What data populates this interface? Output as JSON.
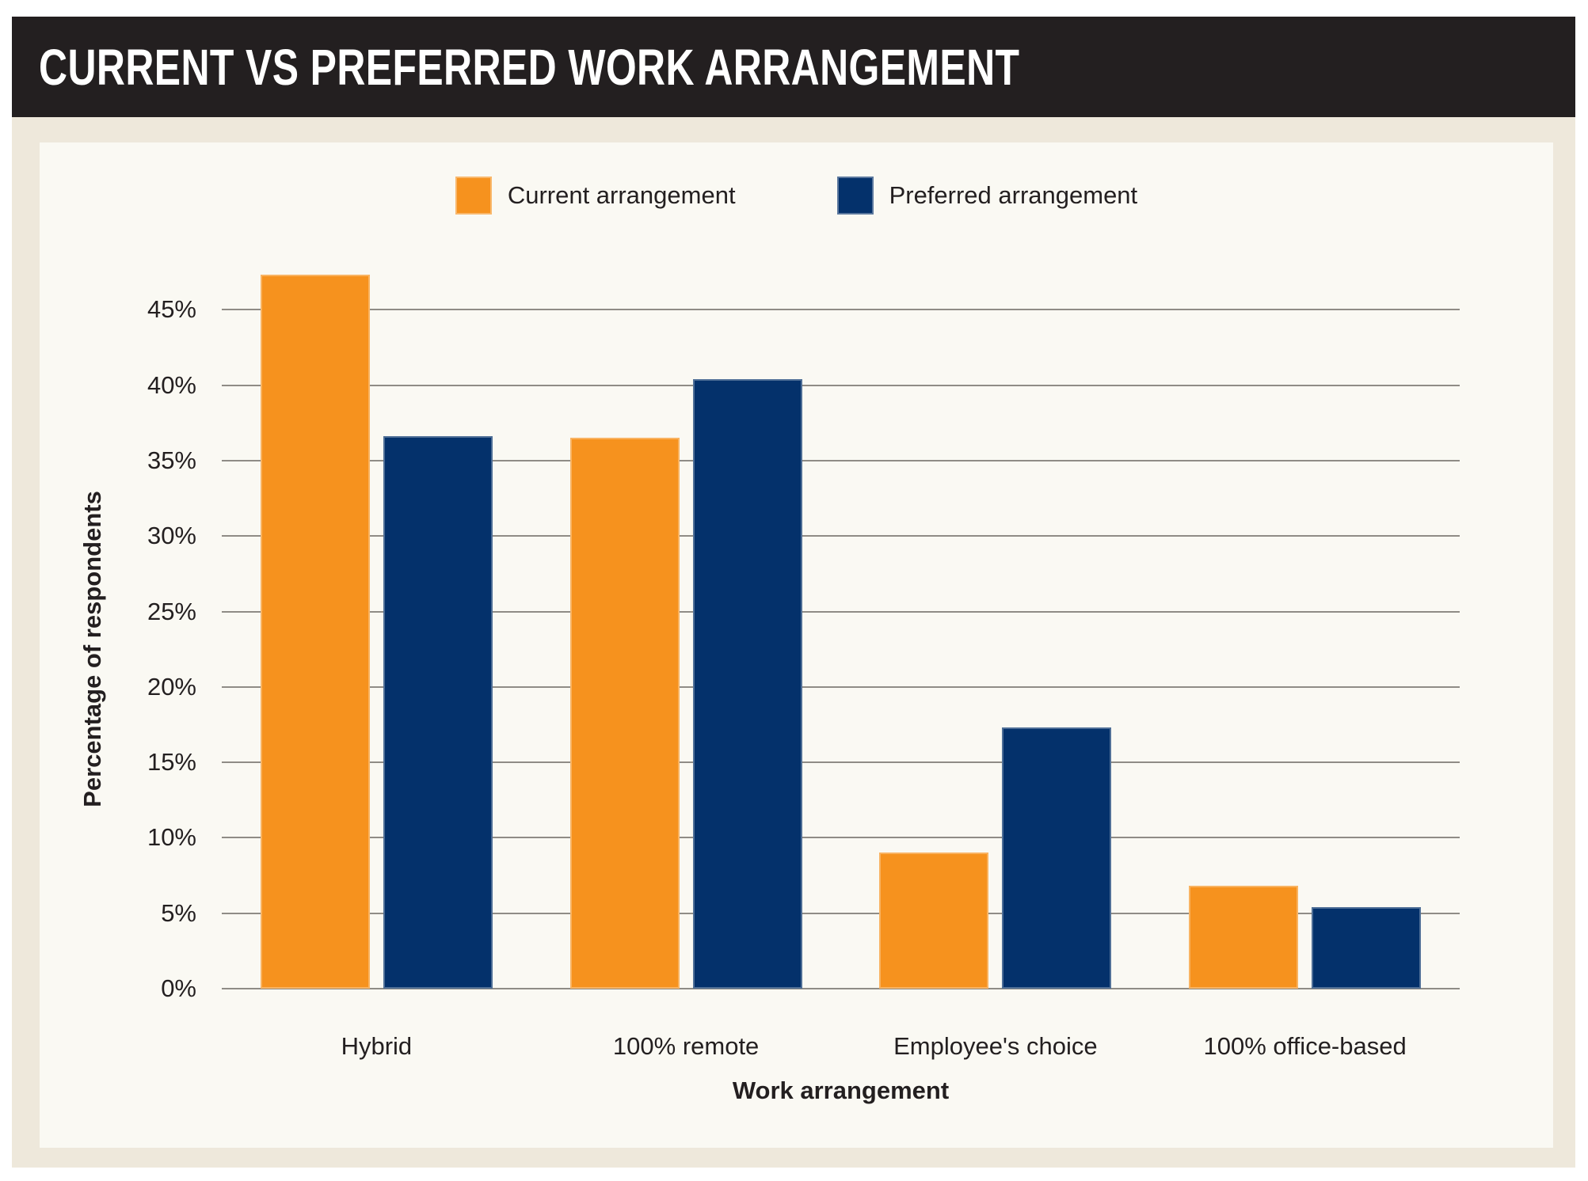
{
  "header": {
    "title": "CURRENT VS PREFERRED WORK ARRANGEMENT"
  },
  "colors": {
    "banner_background": "#231F20",
    "outer_background": "#EEE8DB",
    "panel_background": "#FAF9F3",
    "gridline": "#8F8C86",
    "text": "#231F20",
    "current_orange": "#F6921E",
    "preferred_navy": "#04316B"
  },
  "chart_data": {
    "type": "bar",
    "categories": [
      "Hybrid",
      "100% remote",
      "Employee's choice",
      "100% office-based"
    ],
    "series": [
      {
        "name": "Current arrangement",
        "color": "#F6921E",
        "values": [
          47.3,
          36.5,
          9.0,
          6.8
        ]
      },
      {
        "name": "Preferred arrangement",
        "color": "#04316B",
        "values": [
          36.6,
          40.4,
          17.3,
          5.4
        ]
      }
    ],
    "title": "CURRENT VS PREFERRED WORK ARRANGEMENT",
    "xlabel": "Work arrangement",
    "ylabel": "Percentage of respondents",
    "ylim": [
      0,
      50
    ],
    "yticks": [
      0,
      5,
      10,
      15,
      20,
      25,
      30,
      35,
      40,
      45
    ],
    "ytick_suffix": "%",
    "grid": true,
    "legend_position": "top-center"
  }
}
